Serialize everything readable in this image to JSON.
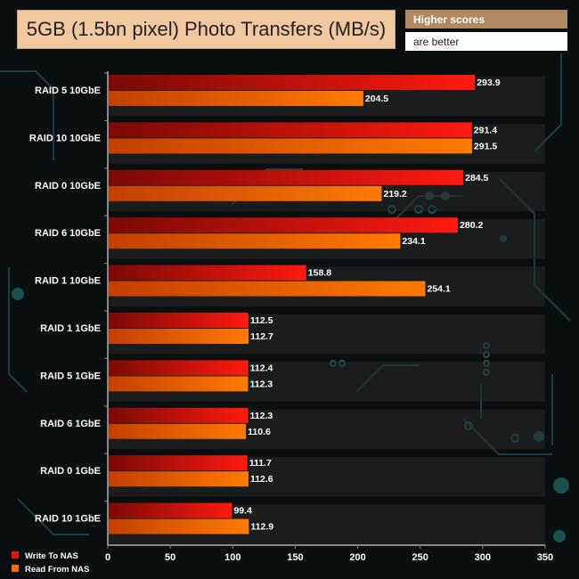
{
  "header": {
    "title": "5GB (1.5bn pixel) Photo Transfers (MB/s)",
    "note_line1": "Higher scores",
    "note_line2": "are better"
  },
  "colors": {
    "write": "#e8120c",
    "read": "#ff6a00",
    "background": "#0b0e0f",
    "circuit": "#1f5a5a"
  },
  "chart_data": {
    "type": "bar",
    "orientation": "horizontal",
    "categories": [
      "RAID 5 10GbE",
      "RAID 10 10GbE",
      "RAID 0 10GbE",
      "RAID 6 10GbE",
      "RAID 1 10GbE",
      "RAID 1 1GbE",
      "RAID 5 1GbE",
      "RAID 6 1GbE",
      "RAID 0 1GbE",
      "RAID 10 1GbE"
    ],
    "series": [
      {
        "name": "Write To NAS",
        "values": [
          293.9,
          291.4,
          284.5,
          280.2,
          158.8,
          112.5,
          112.4,
          112.3,
          111.7,
          99.4
        ]
      },
      {
        "name": "Read From NAS",
        "values": [
          204.5,
          291.5,
          219.2,
          234.1,
          254.1,
          112.7,
          112.3,
          110.6,
          112.6,
          112.9
        ]
      }
    ],
    "xlim": [
      0,
      350
    ],
    "xticks": [
      0,
      50,
      100,
      150,
      200,
      250,
      300,
      350
    ],
    "legend_position": "bottom-left"
  }
}
